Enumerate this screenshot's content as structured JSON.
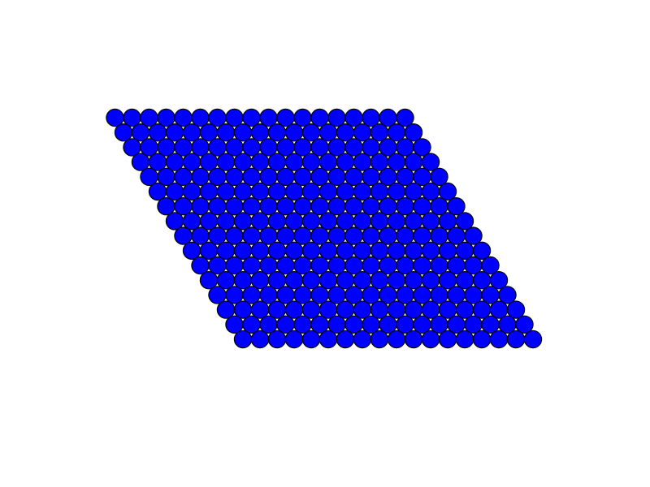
{
  "lattice": {
    "rows": 16,
    "columns": 18,
    "fill_color": "#0000ff",
    "stroke_color": "#000000",
    "background_color": "#ffffff"
  }
}
